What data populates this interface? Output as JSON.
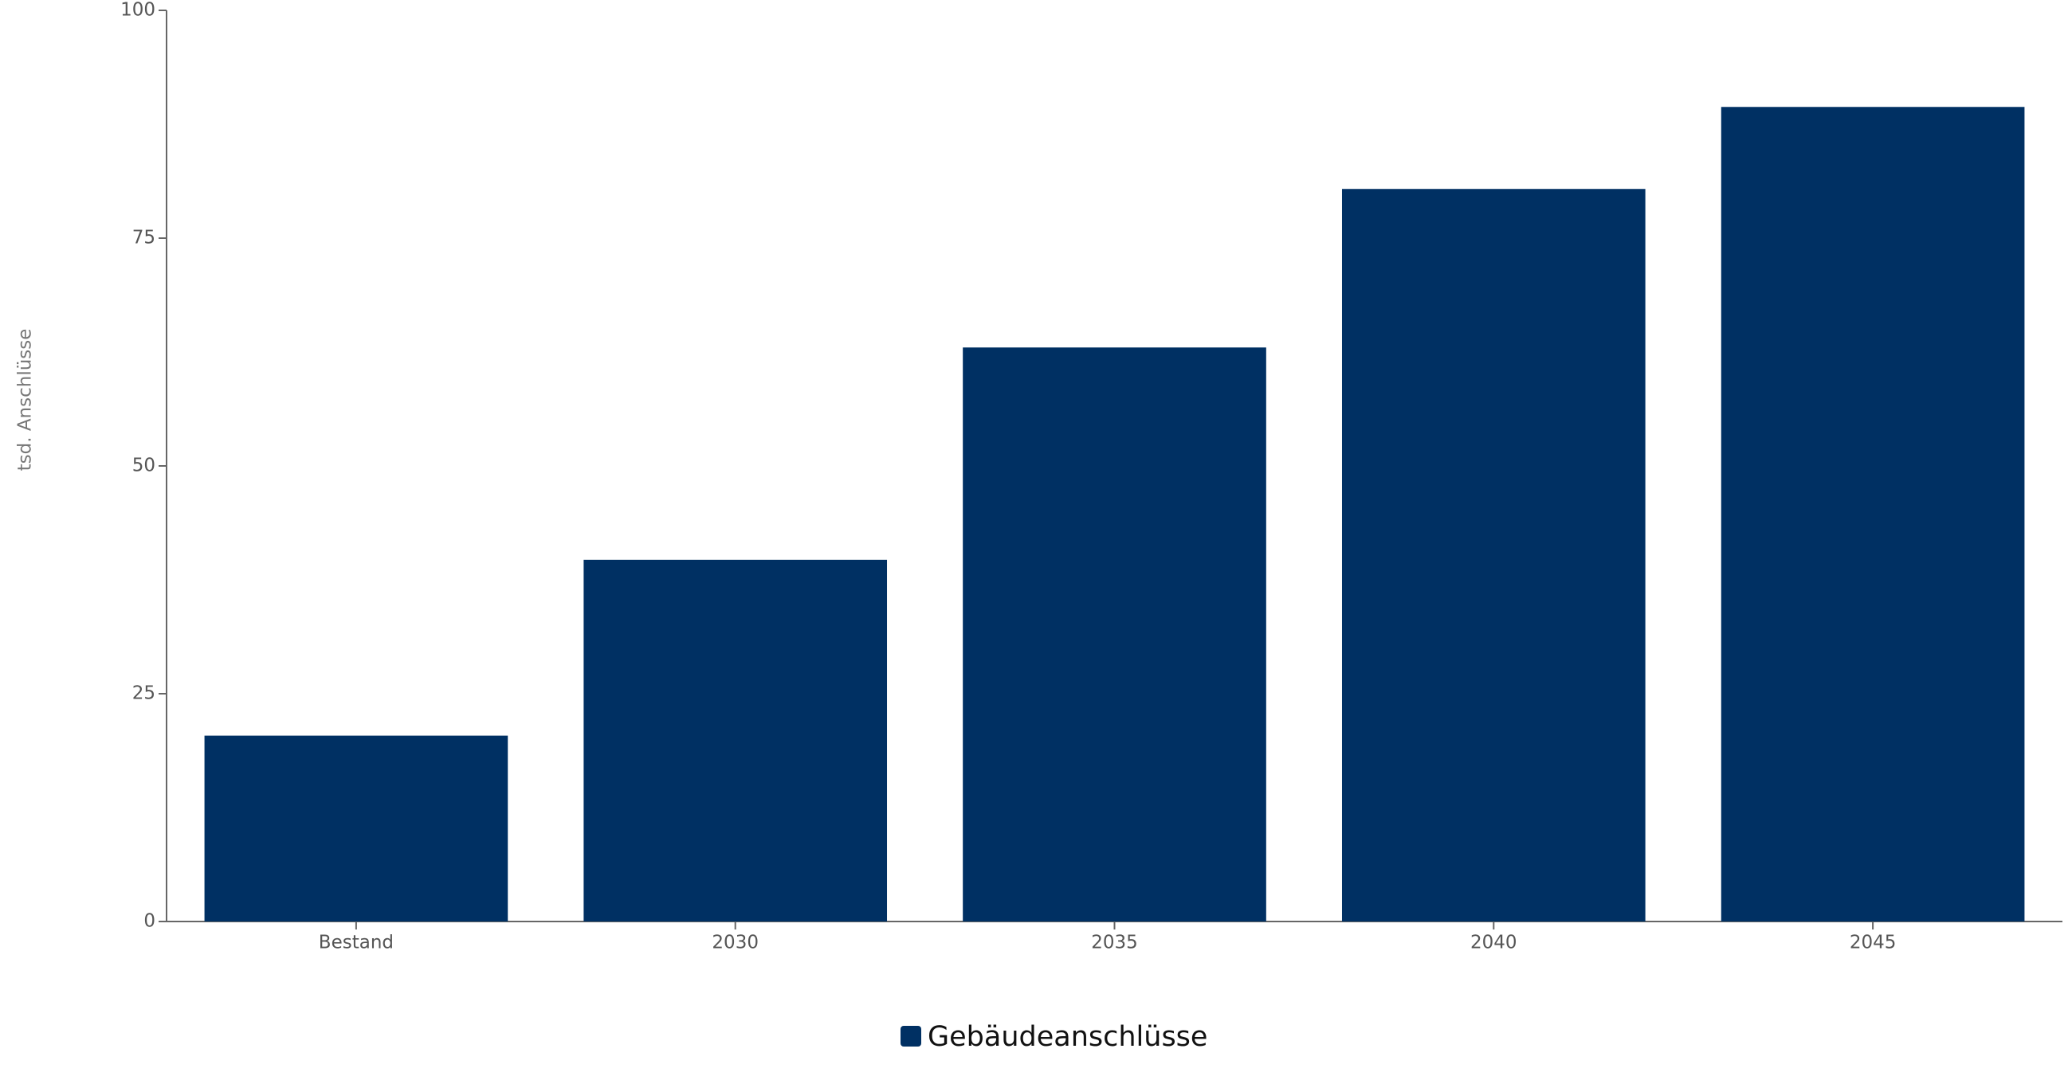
{
  "chart_data": {
    "type": "bar",
    "y_label": "tsd. Anschlüsse",
    "categories": [
      "Bestand",
      "2030",
      "2035",
      "2040",
      "2045"
    ],
    "series": [
      {
        "name": "Gebäudeanschlüsse",
        "color": "#003063",
        "values": [
          20.4,
          39.7,
          63.0,
          80.4,
          89.4
        ]
      }
    ],
    "ylim": [
      0,
      100
    ],
    "yticks": [
      0,
      25,
      50,
      75,
      100
    ],
    "grid": false,
    "legend": "bottom"
  }
}
